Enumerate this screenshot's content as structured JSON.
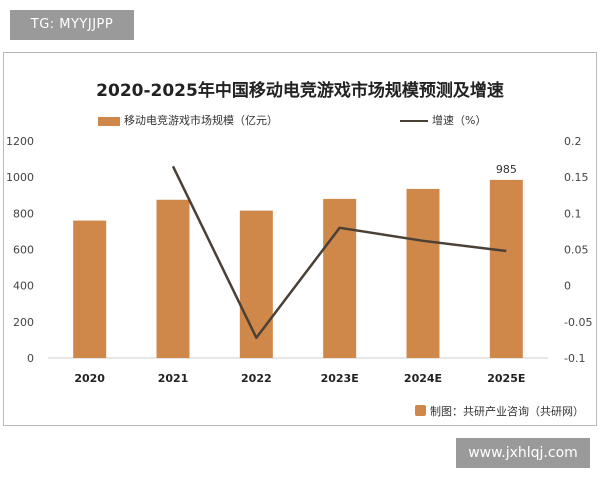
{
  "tag_badge": "TG: MYYJJPP",
  "watermark_badge": "www.jxhlqj.com",
  "source_note": "制图：共研产业咨询（共研网）",
  "colors": {
    "bar": "#d0884a",
    "line": "#4a4036"
  },
  "chart_data": {
    "type": "bar",
    "title": "2020-2025年中国移动电竞游戏市场规模预测及增速",
    "categories": [
      "2020",
      "2021",
      "2022",
      "2023E",
      "2024E",
      "2025E"
    ],
    "series": [
      {
        "name": "移动电竞游戏市场规模（亿元）",
        "type": "bar",
        "axis": "left",
        "values": [
          760,
          875,
          815,
          880,
          935,
          985
        ]
      },
      {
        "name": "增速（%）",
        "type": "line",
        "axis": "right",
        "values": [
          null,
          0.165,
          -0.072,
          0.08,
          0.062,
          0.048
        ]
      }
    ],
    "data_labels": [
      null,
      null,
      null,
      null,
      null,
      "985"
    ],
    "ylim_left": [
      0,
      1200
    ],
    "ylim_right": [
      -0.1,
      0.2
    ],
    "yticks_left": [
      "0",
      "200",
      "400",
      "600",
      "800",
      "1000",
      "1200"
    ],
    "yticks_right": [
      "-0.1",
      "-0.05",
      "0",
      "0.05",
      "0.1",
      "0.15",
      "0.2"
    ],
    "legend_position": "top",
    "grid": false
  }
}
